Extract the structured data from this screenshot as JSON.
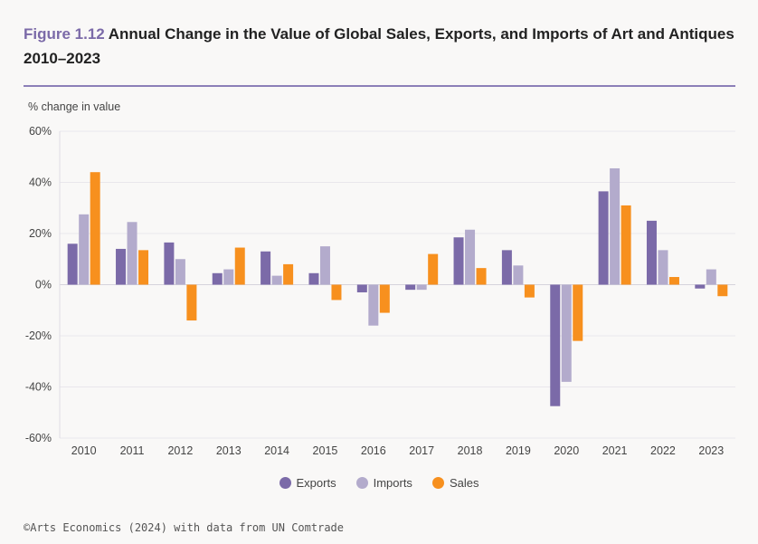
{
  "header": {
    "figure_label": "Figure 1.12",
    "title": "Annual Change in the Value of Global Sales, Exports, and Imports of Art and Antiques 2010–2023"
  },
  "footer": {
    "source": "©Arts Economics (2024) with data from UN Comtrade"
  },
  "chart_data": {
    "type": "bar",
    "ylabel": "% change in value",
    "ylim": [
      -60,
      60
    ],
    "yticks": [
      60,
      40,
      20,
      0,
      -20,
      -40,
      -60
    ],
    "ytick_labels": [
      "60%",
      "40%",
      "20%",
      "0%",
      "-20%",
      "-40%",
      "-60%"
    ],
    "categories": [
      "2010",
      "2011",
      "2012",
      "2013",
      "2014",
      "2015",
      "2016",
      "2017",
      "2018",
      "2019",
      "2020",
      "2021",
      "2022",
      "2023"
    ],
    "series": [
      {
        "name": "Exports",
        "color": "#7b6aa8",
        "values": [
          16,
          14,
          16.5,
          4.5,
          13,
          4.5,
          -3,
          -2,
          18.5,
          13.5,
          -47.5,
          36.5,
          25,
          -1.5
        ]
      },
      {
        "name": "Imports",
        "color": "#b3abcc",
        "values": [
          27.5,
          24.5,
          10,
          6,
          3.5,
          15,
          -16,
          -2,
          21.5,
          7.5,
          -38,
          45.5,
          13.5,
          6
        ]
      },
      {
        "name": "Sales",
        "color": "#f7901e",
        "values": [
          44,
          13.5,
          -14,
          14.5,
          8,
          -6,
          -11,
          12,
          6.5,
          -5,
          -22,
          31,
          3,
          -4.5
        ]
      }
    ],
    "grid": true,
    "legend": "bottom-center"
  }
}
